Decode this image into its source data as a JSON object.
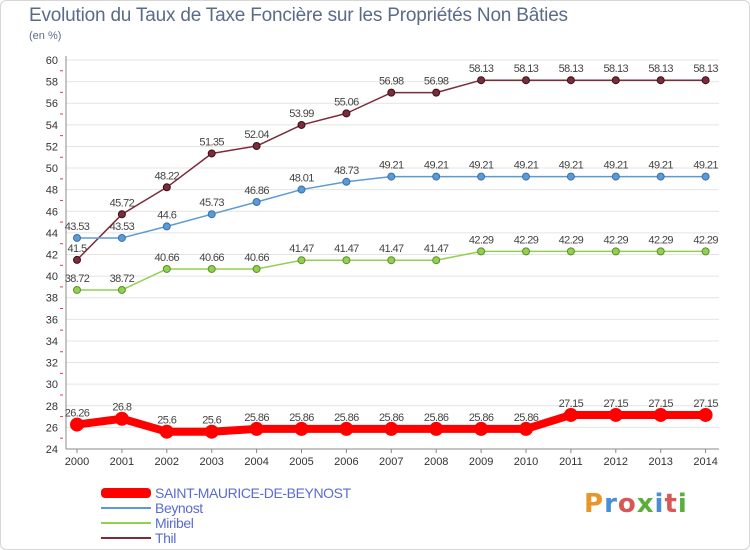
{
  "header": {
    "title": "Evolution du Taux de Taxe Foncière sur les Propriétés Non Bâties",
    "subtitle": "(en %)"
  },
  "logo": {
    "text": "Proxiti",
    "letter_colors": [
      "#e8962a",
      "#4a8fd4",
      "#d85858",
      "#5aaf3c",
      "#4a8fd4",
      "#d85858",
      "#5aaf3c"
    ]
  },
  "chart_data": {
    "type": "line",
    "x": [
      "2000",
      "2001",
      "2002",
      "2003",
      "2004",
      "2005",
      "2006",
      "2007",
      "2008",
      "2009",
      "2010",
      "2011",
      "2012",
      "2013",
      "2014"
    ],
    "ylim": [
      24,
      60
    ],
    "yticks": [
      24,
      26,
      28,
      30,
      32,
      34,
      36,
      38,
      40,
      42,
      44,
      46,
      48,
      50,
      52,
      54,
      56,
      58,
      60
    ],
    "grid": "horizontal",
    "legend_position": "bottom-left",
    "series": [
      {
        "name": "SAINT-MAURICE-DE-BEYNOST",
        "color": "#ff0000",
        "values": [
          26.26,
          26.8,
          25.6,
          25.6,
          25.86,
          25.86,
          25.86,
          25.86,
          25.86,
          25.86,
          25.86,
          27.15,
          27.15,
          27.15,
          27.15
        ],
        "labels": [
          "26.26",
          "26.8",
          "25.6",
          "25.6",
          "25.86",
          "25.86",
          "25.86",
          "25.86",
          "25.86",
          "25.86",
          "25.86",
          "27.15",
          "27.15",
          "27.15",
          "27.15"
        ]
      },
      {
        "name": "Beynost",
        "color": "#5b9bd5",
        "values": [
          43.53,
          43.53,
          44.6,
          45.73,
          46.86,
          48.01,
          48.73,
          49.21,
          49.21,
          49.21,
          49.21,
          49.21,
          49.21,
          49.21,
          49.21
        ],
        "labels": [
          "43.53",
          "43.53",
          "44.6",
          "45.73",
          "46.86",
          "48.01",
          "48.73",
          "49.21",
          "49.21",
          "49.21",
          "49.21",
          "49.21",
          "49.21",
          "49.21",
          "49.21"
        ]
      },
      {
        "name": "Miribel",
        "color": "#92d050",
        "values": [
          38.72,
          38.72,
          40.66,
          40.66,
          40.66,
          41.47,
          41.47,
          41.47,
          41.47,
          42.29,
          42.29,
          42.29,
          42.29,
          42.29,
          42.29
        ],
        "labels": [
          "38.72",
          "38.72",
          "40.66",
          "40.66",
          "40.66",
          "41.47",
          "41.47",
          "41.47",
          "41.47",
          "42.29",
          "42.29",
          "42.29",
          "42.29",
          "42.29",
          "42.29"
        ]
      },
      {
        "name": "Thil",
        "color": "#7b2c3a",
        "values": [
          41.5,
          45.72,
          48.22,
          51.35,
          52.04,
          53.99,
          55.06,
          56.98,
          56.98,
          58.13,
          58.13,
          58.13,
          58.13,
          58.13,
          58.13
        ],
        "labels": [
          "41.5",
          "45.72",
          "48.22",
          "51.35",
          "52.04",
          "53.99",
          "55.06",
          "56.98",
          "56.98",
          "58.13",
          "58.13",
          "58.13",
          "58.13",
          "58.13",
          "58.13"
        ]
      }
    ]
  }
}
